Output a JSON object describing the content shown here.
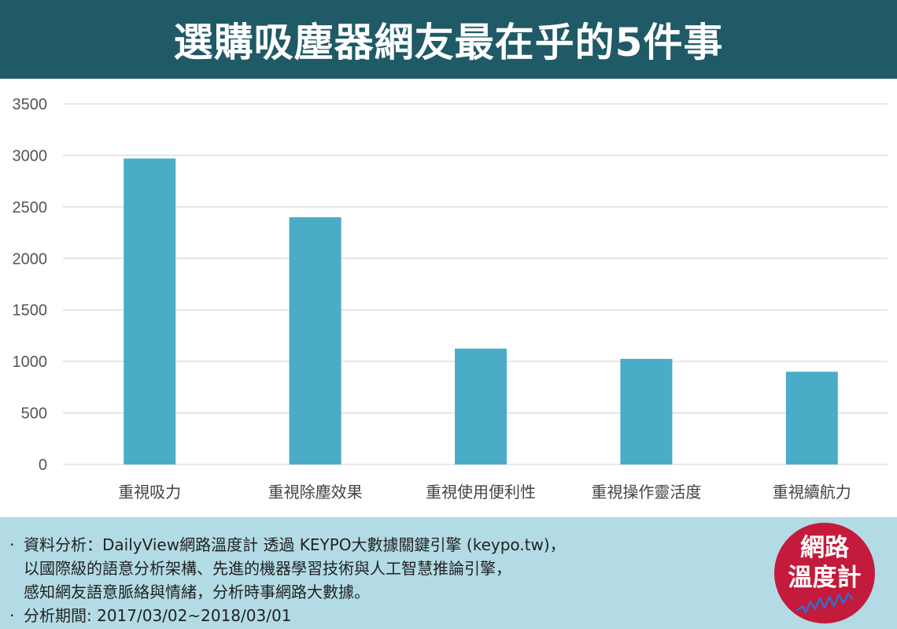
{
  "header": {
    "title": "選購吸塵器網友最在乎的5件事"
  },
  "chart_data": {
    "type": "bar",
    "categories": [
      "重視吸力",
      "重視除塵效果",
      "重視使用便利性",
      "重視操作靈活度",
      "重視續航力"
    ],
    "values": [
      2970,
      2400,
      1125,
      1025,
      900
    ],
    "yticks": [
      "0",
      "500",
      "1000",
      "1500",
      "2000",
      "2500",
      "3000",
      "3500"
    ],
    "ylim": [
      0,
      3500
    ],
    "grid": true,
    "bar_color": "#4aacc6",
    "grid_color": "#d9d9d9"
  },
  "footer": {
    "bullet": "·",
    "line1": "資料分析：DailyView網路溫度計  透過 KEYPO大數據關鍵引擎 (keypo.tw)，",
    "line2": "以國際級的語意分析架構、先進的機器學習技術與人工智慧推論引擎，",
    "line3": "感知網友語意脈絡與情緒，分析時事網路大數據。",
    "line4": "分析期間: 2017/03/02~2018/03/01"
  },
  "logo": {
    "line1": "網路",
    "line2": "溫度計",
    "color": "#c41a3b"
  }
}
